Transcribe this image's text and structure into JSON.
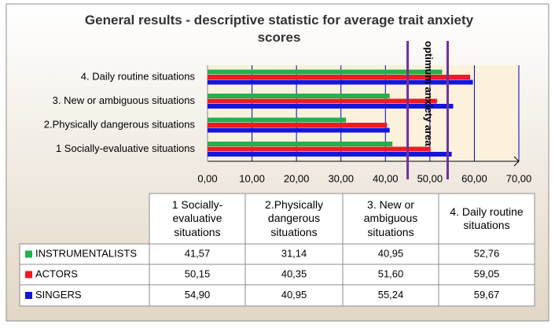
{
  "chart_data": {
    "type": "bar",
    "orientation": "horizontal",
    "title": "General results - descriptive statistic for average trait anxiety scores",
    "categories": [
      "1 Socially-evaluative situations",
      "2.Physically dangerous situations",
      "3. New or ambiguous situations",
      "4. Daily routine situations"
    ],
    "series": [
      {
        "name": "INSTRUMENTALISTS",
        "color": "#22b14c",
        "values": [
          41.57,
          31.14,
          40.95,
          52.76
        ],
        "value_labels": [
          "41,57",
          "31,14",
          "40,95",
          "52,76"
        ]
      },
      {
        "name": "ACTORS",
        "color": "#ed1c24",
        "values": [
          50.15,
          40.35,
          51.6,
          59.05
        ],
        "value_labels": [
          "50,15",
          "40,35",
          "51,60",
          "59,05"
        ]
      },
      {
        "name": "SINGERS",
        "color": "#1515e0",
        "values": [
          54.9,
          40.95,
          55.24,
          59.67
        ],
        "value_labels": [
          "54,90",
          "40,95",
          "55,24",
          "59,67"
        ]
      }
    ],
    "xlim": [
      0,
      70
    ],
    "xticks": [
      {
        "value": 0,
        "label": "0,00"
      },
      {
        "value": 10,
        "label": "10,00"
      },
      {
        "value": 20,
        "label": "20,00"
      },
      {
        "value": 30,
        "label": "30,00"
      },
      {
        "value": 40,
        "label": "40,00"
      },
      {
        "value": 50,
        "label": "50,00"
      },
      {
        "value": 60,
        "label": "60,00"
      },
      {
        "value": 70,
        "label": "70,00"
      }
    ],
    "grid": true,
    "annotation": {
      "text": "optimum anxiety area",
      "x": [
        45,
        54
      ],
      "color": "#7030a0"
    }
  }
}
